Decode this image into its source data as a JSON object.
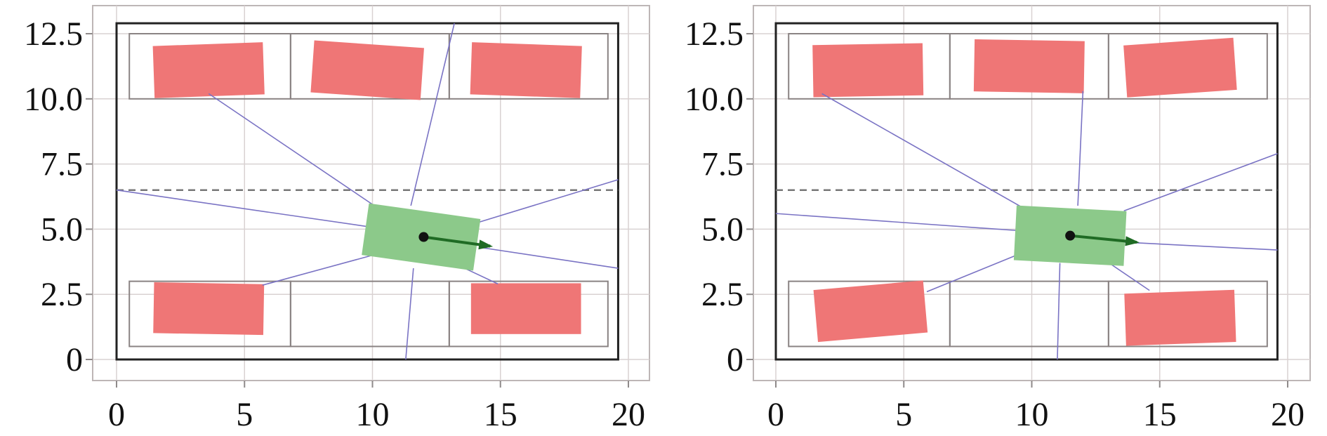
{
  "colors": {
    "obstacle": "#ef7676",
    "ego": "#8cc98a",
    "ray": "#7a73c4",
    "heading_arrow": "#1f6b24",
    "center_dot": "#111111",
    "reference_line": "#777777"
  },
  "chart_data": [
    {
      "type": "scatter",
      "xlim": [
        0,
        20
      ],
      "ylim": [
        0,
        12.5
      ],
      "x_ticks": [
        0,
        5,
        10,
        15,
        20
      ],
      "y_ticks": [
        0,
        2.5,
        5.0,
        7.5,
        10.0,
        12.5
      ],
      "x_tick_labels": [
        "0",
        "5",
        "10",
        "15",
        "20"
      ],
      "y_tick_labels": [
        "0",
        "2.5",
        "5.0",
        "7.5",
        "10.0",
        "12.5"
      ],
      "grid": true,
      "boundary": [
        0,
        0,
        19.6,
        12.9
      ],
      "reference_line_y": 6.5,
      "slots": [
        [
          0.5,
          10.0,
          6.8,
          12.5
        ],
        [
          6.8,
          10.0,
          13.0,
          12.5
        ],
        [
          13.0,
          10.0,
          19.2,
          12.5
        ],
        [
          0.5,
          0.5,
          6.8,
          3.0
        ],
        [
          6.8,
          0.5,
          13.0,
          3.0
        ],
        [
          13.0,
          0.5,
          19.2,
          3.0
        ]
      ],
      "obstacles": [
        {
          "cx": 3.6,
          "cy": 11.1,
          "w": 4.3,
          "h": 2.0,
          "angle": 2
        },
        {
          "cx": 9.8,
          "cy": 11.1,
          "w": 4.3,
          "h": 2.0,
          "angle": -4
        },
        {
          "cx": 16.0,
          "cy": 11.1,
          "w": 4.3,
          "h": 2.0,
          "angle": -2
        },
        {
          "cx": 3.6,
          "cy": 1.95,
          "w": 4.3,
          "h": 1.95,
          "angle": -1
        },
        {
          "cx": 16.0,
          "cy": 1.95,
          "w": 4.3,
          "h": 1.95,
          "angle": 0
        }
      ],
      "ego": {
        "cx": 11.9,
        "cy": 4.7,
        "w": 4.4,
        "h": 2.0,
        "angle": -8
      },
      "ego_center": [
        12.0,
        4.7
      ],
      "heading_arrow": {
        "from": [
          12.0,
          4.7
        ],
        "to": [
          14.6,
          4.35
        ]
      },
      "rays": [
        {
          "from": [
            10.0,
            5.95
          ],
          "to": [
            3.6,
            10.2
          ]
        },
        {
          "from": [
            11.5,
            5.9
          ],
          "to": [
            13.2,
            12.9
          ]
        },
        {
          "from": [
            14.1,
            5.25
          ],
          "to": [
            19.6,
            6.9
          ]
        },
        {
          "from": [
            14.2,
            4.3
          ],
          "to": [
            19.6,
            3.5
          ]
        },
        {
          "from": [
            13.6,
            3.5
          ],
          "to": [
            14.9,
            2.9
          ]
        },
        {
          "from": [
            11.6,
            3.5
          ],
          "to": [
            11.3,
            0.0
          ]
        },
        {
          "from": [
            10.0,
            4.0
          ],
          "to": [
            5.7,
            2.85
          ]
        },
        {
          "from": [
            9.8,
            5.1
          ],
          "to": [
            0.0,
            6.5
          ]
        }
      ]
    },
    {
      "type": "scatter",
      "xlim": [
        0,
        20
      ],
      "ylim": [
        0,
        12.5
      ],
      "x_ticks": [
        0,
        5,
        10,
        15,
        20
      ],
      "y_ticks": [
        0,
        2.5,
        5.0,
        7.5,
        10.0,
        12.5
      ],
      "x_tick_labels": [
        "0",
        "5",
        "10",
        "15",
        "20"
      ],
      "y_tick_labels": [
        "0",
        "2.5",
        "5.0",
        "7.5",
        "10.0",
        "12.5"
      ],
      "grid": true,
      "boundary": [
        0,
        0,
        19.6,
        12.9
      ],
      "reference_line_y": 6.5,
      "slots": [
        [
          0.5,
          10.0,
          6.8,
          12.5
        ],
        [
          6.8,
          10.0,
          13.0,
          12.5
        ],
        [
          13.0,
          10.0,
          19.2,
          12.5
        ],
        [
          0.5,
          0.5,
          6.8,
          3.0
        ],
        [
          6.8,
          0.5,
          13.0,
          3.0
        ],
        [
          13.0,
          0.5,
          19.2,
          3.0
        ]
      ],
      "obstacles": [
        {
          "cx": 3.6,
          "cy": 11.1,
          "w": 4.3,
          "h": 2.0,
          "angle": 1
        },
        {
          "cx": 9.9,
          "cy": 11.25,
          "w": 4.3,
          "h": 2.0,
          "angle": -1
        },
        {
          "cx": 15.8,
          "cy": 11.2,
          "w": 4.3,
          "h": 2.0,
          "angle": 4
        },
        {
          "cx": 3.7,
          "cy": 1.85,
          "w": 4.3,
          "h": 2.0,
          "angle": 5
        },
        {
          "cx": 15.8,
          "cy": 1.6,
          "w": 4.3,
          "h": 2.0,
          "angle": 2
        }
      ],
      "ego": {
        "cx": 11.5,
        "cy": 4.75,
        "w": 4.3,
        "h": 2.1,
        "angle": -3
      },
      "ego_center": [
        11.5,
        4.75
      ],
      "heading_arrow": {
        "from": [
          11.5,
          4.75
        ],
        "to": [
          14.1,
          4.5
        ]
      },
      "rays": [
        {
          "from": [
            9.6,
            5.85
          ],
          "to": [
            1.8,
            10.2
          ]
        },
        {
          "from": [
            11.8,
            5.9
          ],
          "to": [
            12.0,
            10.3
          ]
        },
        {
          "from": [
            13.6,
            5.7
          ],
          "to": [
            19.6,
            7.9
          ]
        },
        {
          "from": [
            13.6,
            4.5
          ],
          "to": [
            19.6,
            4.2
          ]
        },
        {
          "from": [
            13.1,
            3.65
          ],
          "to": [
            14.6,
            2.65
          ]
        },
        {
          "from": [
            11.1,
            3.7
          ],
          "to": [
            11.0,
            0.0
          ]
        },
        {
          "from": [
            9.4,
            4.0
          ],
          "to": [
            5.9,
            2.6
          ]
        },
        {
          "from": [
            9.4,
            4.95
          ],
          "to": [
            0.0,
            5.6
          ]
        }
      ]
    }
  ]
}
